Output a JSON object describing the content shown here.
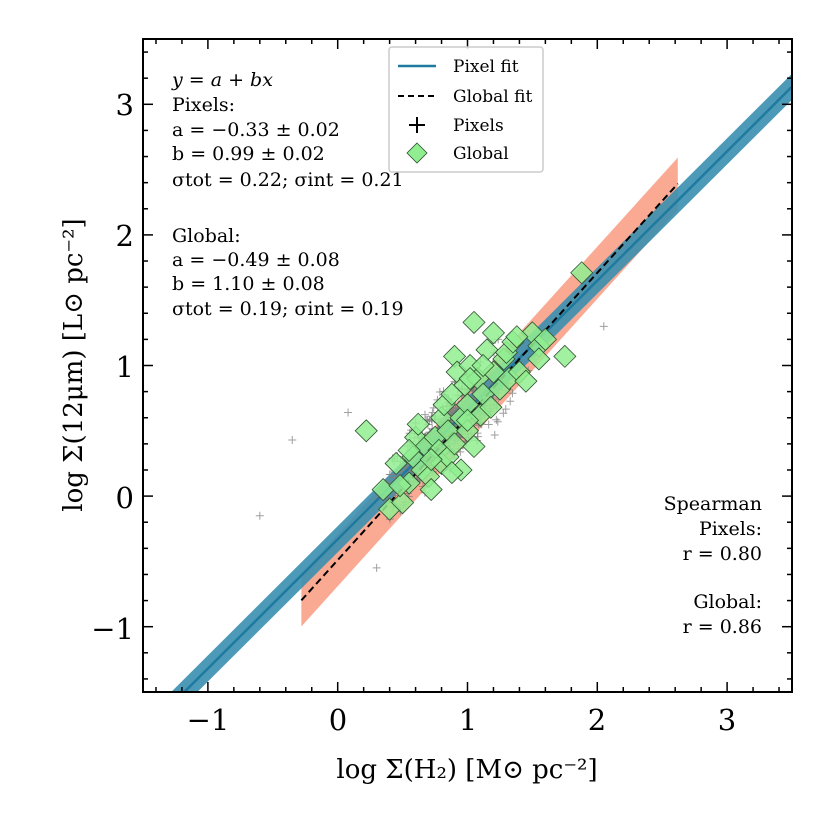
{
  "chart_data": {
    "type": "scatter",
    "xlabel": "log Σ(H₂) [M⊙ pc⁻²]",
    "ylabel": "log Σ(12μm) [L⊙ pc⁻²]",
    "xlim": [
      -1.5,
      3.5
    ],
    "ylim": [
      -1.5,
      3.5
    ],
    "x_ticks": [
      -1,
      0,
      1,
      2,
      3
    ],
    "y_ticks": [
      -1,
      0,
      1,
      2,
      3
    ],
    "x_tick_labels": [
      "−1",
      "0",
      "1",
      "2",
      "3"
    ],
    "y_tick_labels": [
      "−1",
      "0",
      "1",
      "2",
      "3"
    ],
    "series": [
      {
        "name": "Pixel fit",
        "kind": "line",
        "a": -0.33,
        "b": 0.99,
        "x_range": [
          -1.5,
          3.5
        ],
        "band_halfwidth": 0.1,
        "color": "#1f7aa0",
        "band_color": "#3a8fb0"
      },
      {
        "name": "Global fit",
        "kind": "line",
        "a": -0.49,
        "b": 1.1,
        "x_range": [
          -0.28,
          2.62
        ],
        "band_halfwidth": 0.2,
        "style": "dashed",
        "color": "#000000",
        "band_color": "#f99a80"
      },
      {
        "name": "Pixels",
        "kind": "scatter",
        "marker": "plus",
        "color": "#7f7f7f",
        "n": 520,
        "slope": 0.99,
        "intercept": -0.33,
        "x_center": 0.85,
        "x_spread": 0.38,
        "scatter": 0.21,
        "outliers": [
          [
            -0.6,
            -0.15
          ],
          [
            -0.35,
            0.43
          ],
          [
            0.08,
            0.64
          ],
          [
            0.3,
            -0.55
          ],
          [
            2.05,
            1.3
          ]
        ]
      },
      {
        "name": "Global",
        "kind": "scatter",
        "marker": "diamond",
        "color": "#90ee90",
        "points": [
          [
            0.22,
            0.5
          ],
          [
            0.45,
            0.25
          ],
          [
            0.35,
            0.05
          ],
          [
            0.4,
            -0.1
          ],
          [
            0.5,
            -0.05
          ],
          [
            0.55,
            0.1
          ],
          [
            0.58,
            0.3
          ],
          [
            0.6,
            0.45
          ],
          [
            0.62,
            0.55
          ],
          [
            0.65,
            0.2
          ],
          [
            0.68,
            0.38
          ],
          [
            0.7,
            0.15
          ],
          [
            0.72,
            0.05
          ],
          [
            0.75,
            0.45
          ],
          [
            0.78,
            0.35
          ],
          [
            0.8,
            0.6
          ],
          [
            0.8,
            0.25
          ],
          [
            0.82,
            0.7
          ],
          [
            0.85,
            0.5
          ],
          [
            0.85,
            0.3
          ],
          [
            0.88,
            0.78
          ],
          [
            0.9,
            0.4
          ],
          [
            0.9,
            1.07
          ],
          [
            0.92,
            0.95
          ],
          [
            0.95,
            0.2
          ],
          [
            0.95,
            0.6
          ],
          [
            0.98,
            0.85
          ],
          [
            1.0,
            0.5
          ],
          [
            1.0,
            0.7
          ],
          [
            1.02,
            1.0
          ],
          [
            1.05,
            0.38
          ],
          [
            1.05,
            1.33
          ],
          [
            1.08,
            0.9
          ],
          [
            1.1,
            0.62
          ],
          [
            1.12,
            0.78
          ],
          [
            1.15,
            1.12
          ],
          [
            1.18,
            0.68
          ],
          [
            1.2,
            0.95
          ],
          [
            1.2,
            1.25
          ],
          [
            1.25,
            0.82
          ],
          [
            1.28,
            1.05
          ],
          [
            1.3,
            1.1
          ],
          [
            1.32,
            0.9
          ],
          [
            1.35,
            1.18
          ],
          [
            1.4,
            0.95
          ],
          [
            1.45,
            0.88
          ],
          [
            1.5,
            1.25
          ],
          [
            1.55,
            1.15
          ],
          [
            1.55,
            1.05
          ],
          [
            1.6,
            1.2
          ],
          [
            1.75,
            1.07
          ],
          [
            1.88,
            1.71
          ],
          [
            0.48,
            0.08
          ],
          [
            0.55,
            0.35
          ],
          [
            1.0,
            0.58
          ],
          [
            0.72,
            0.28
          ],
          [
            0.88,
            0.18
          ],
          [
            1.02,
            0.9
          ],
          [
            1.38,
            1.22
          ],
          [
            1.12,
            1.0
          ]
        ]
      }
    ],
    "legend": {
      "position": "top-center",
      "items": [
        "Pixel fit",
        "Global fit",
        "Pixels",
        "Global"
      ]
    },
    "annotations": {
      "equation": "y = a + bx",
      "pixels_heading": "Pixels:",
      "pixels_a": "a = −0.33 ± 0.02",
      "pixels_b": "b = 0.99 ± 0.02",
      "pixels_sigma": "σtot = 0.22; σint = 0.21",
      "global_heading": "Global:",
      "global_a": "a = −0.49 ± 0.08",
      "global_b": "b = 1.10 ± 0.08",
      "global_sigma": "σtot = 0.19; σint = 0.19",
      "spearman_title": "Spearman",
      "spearman_pixels": "Pixels:",
      "spearman_pixels_r": "r = 0.80",
      "spearman_global": "Global:",
      "spearman_global_r": "r = 0.86"
    }
  }
}
